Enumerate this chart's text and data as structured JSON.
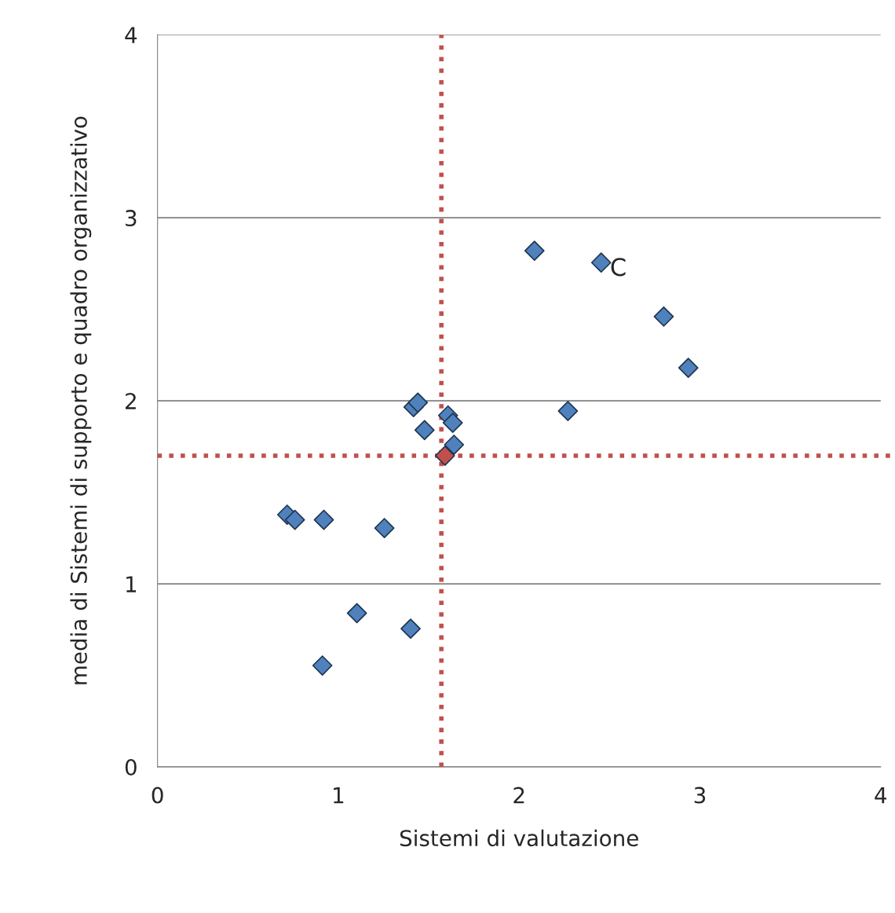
{
  "chart_data": {
    "type": "scatter",
    "xlabel": "Sistemi di valutazione",
    "ylabel": "media di Sistemi di supporto e quadro organizzativo",
    "series": [
      {
        "color": "#4f81bd",
        "x": [
          2.085,
          2.454,
          2.8,
          2.936,
          2.27,
          1.416,
          1.44,
          1.477,
          1.607,
          1.633,
          1.64,
          0.717,
          0.76,
          0.92,
          1.255,
          1.103,
          1.4,
          0.912
        ],
        "values": [
          2.82,
          2.755,
          2.46,
          2.18,
          1.944,
          1.966,
          1.99,
          1.84,
          1.92,
          1.88,
          1.76,
          1.378,
          1.35,
          1.35,
          1.305,
          0.84,
          0.755,
          0.554
        ]
      },
      {
        "color": "#c0504d",
        "x": [
          1.59
        ],
        "values": [
          1.7
        ]
      }
    ],
    "annotations": [
      {
        "text": "C",
        "x": 2.454,
        "y": 2.755
      }
    ],
    "ref_lines": [
      {
        "axis": "x",
        "value": 1.57,
        "color": "#c0504d",
        "line_style": "dotted"
      },
      {
        "axis": "y",
        "value": 1.7,
        "color": "#c0504d",
        "line_style": "dotted"
      }
    ],
    "xlim": [
      0,
      4
    ],
    "ylim": [
      0,
      4
    ],
    "xticks": [
      0,
      1,
      2,
      3,
      4
    ],
    "yticks": [
      0,
      1,
      2,
      3,
      4
    ],
    "grid": "y",
    "marker": "diamond"
  }
}
